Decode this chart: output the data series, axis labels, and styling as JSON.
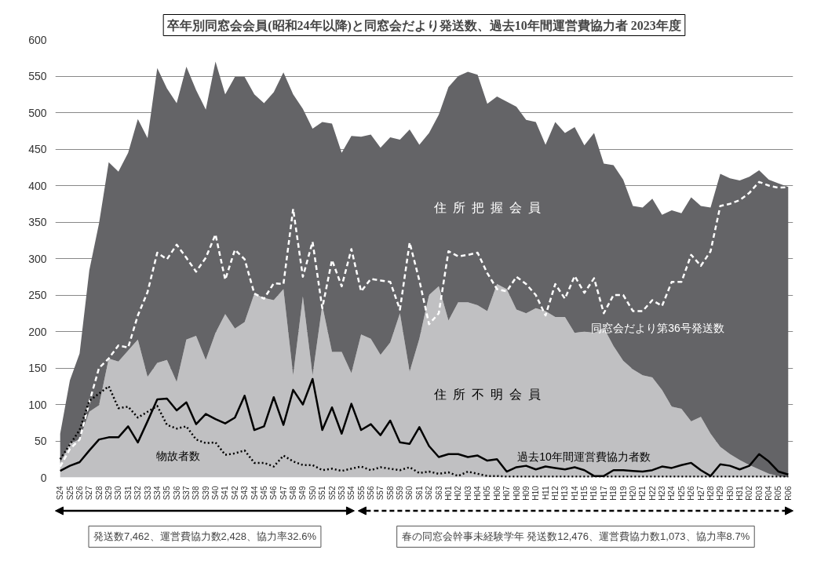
{
  "chart_data": {
    "type": "area",
    "stacked": true,
    "title": "卒年別同窓会会員(昭和24年以降)と同窓会だより発送数、過去10年間運営費協力者 2023年度",
    "categories": [
      "S24",
      "S25",
      "S26",
      "S27",
      "S28",
      "S29",
      "S30",
      "S31",
      "S32",
      "S33",
      "S34",
      "S35",
      "S36",
      "S37",
      "S38",
      "S39",
      "S40",
      "S41",
      "S42",
      "S43",
      "S44",
      "S45",
      "S46",
      "S47",
      "S48",
      "S49",
      "S50",
      "S51",
      "S52",
      "S53",
      "S54",
      "S55",
      "S56",
      "S57",
      "S58",
      "S59",
      "S60",
      "S61",
      "S62",
      "S63",
      "H01",
      "H02",
      "H03",
      "H04",
      "H05",
      "H06",
      "H07",
      "H08",
      "H09",
      "H10",
      "H11",
      "H12",
      "H13",
      "H14",
      "H15",
      "H16",
      "H17",
      "H18",
      "H19",
      "H20",
      "H21",
      "H22",
      "H23",
      "H24",
      "H25",
      "H26",
      "H27",
      "H28",
      "H29",
      "H30",
      "H31",
      "R02",
      "R03",
      "R04",
      "R05",
      "R06"
    ],
    "series": [
      {
        "name": "住所不明会員",
        "color": "#c0c0c2",
        "values": [
          20,
          47,
          52,
          90,
          99,
          163,
          159,
          174,
          189,
          138,
          157,
          161,
          131,
          189,
          194,
          161,
          198,
          224,
          204,
          213,
          252,
          246,
          243,
          258,
          140,
          248,
          140,
          236,
          172,
          172,
          143,
          196,
          190,
          168,
          185,
          225,
          145,
          190,
          250,
          262,
          215,
          240,
          240,
          236,
          228,
          265,
          258,
          230,
          225,
          232,
          228,
          220,
          220,
          198,
          200,
          198,
          205,
          180,
          160,
          148,
          140,
          137,
          120,
          97,
          94,
          77,
          83,
          60,
          42,
          32,
          24,
          17,
          11,
          5,
          2,
          0
        ]
      },
      {
        "name": "住所把握会員",
        "color": "#646467",
        "values": [
          40,
          86,
          118,
          194,
          249,
          269,
          260,
          271,
          302,
          327,
          404,
          372,
          382,
          374,
          337,
          343,
          372,
          301,
          345,
          336,
          273,
          267,
          285,
          297,
          385,
          257,
          338,
          251,
          313,
          273,
          325,
          271,
          280,
          284,
          281,
          238,
          332,
          266,
          222,
          235,
          320,
          310,
          316,
          316,
          284,
          257,
          257,
          278,
          265,
          255,
          228,
          267,
          252,
          282,
          255,
          274,
          225,
          248,
          248,
          224,
          230,
          245,
          240,
          269,
          268,
          307,
          289,
          310,
          374,
          378,
          383,
          395,
          410,
          403,
          401,
          398
        ]
      },
      {
        "name": "同窓会だより第36号発送数",
        "type": "line",
        "line_style": "dashed",
        "color": "#ffffff",
        "values": [
          15,
          39,
          52,
          103,
          150,
          163,
          181,
          178,
          222,
          254,
          308,
          299,
          319,
          301,
          282,
          301,
          333,
          271,
          312,
          299,
          252,
          245,
          266,
          265,
          368,
          275,
          323,
          232,
          298,
          262,
          313,
          255,
          272,
          270,
          268,
          230,
          322,
          270,
          210,
          225,
          310,
          303,
          305,
          308,
          280,
          258,
          255,
          275,
          265,
          250,
          222,
          265,
          245,
          276,
          253,
          273,
          225,
          250,
          250,
          228,
          228,
          243,
          235,
          268,
          268,
          305,
          290,
          310,
          372,
          375,
          380,
          390,
          405,
          400,
          397,
          398
        ]
      },
      {
        "name": "物故者数",
        "type": "line",
        "line_style": "dotted",
        "color": "#000000",
        "values": [
          25,
          45,
          65,
          105,
          115,
          125,
          95,
          97,
          82,
          90,
          98,
          72,
          67,
          70,
          52,
          47,
          48,
          31,
          33,
          37,
          20,
          20,
          15,
          30,
          22,
          17,
          17,
          10,
          12,
          9,
          12,
          15,
          10,
          14,
          12,
          10,
          14,
          6,
          8,
          5,
          7,
          2,
          8,
          5,
          2,
          2,
          1,
          1,
          1,
          1,
          1,
          1,
          1,
          1,
          1,
          1,
          1,
          1,
          1,
          1,
          1,
          1,
          1,
          1,
          1,
          1,
          1,
          1,
          1,
          1,
          1,
          1,
          1,
          1,
          1,
          1
        ]
      },
      {
        "name": "過去10年間運営費協力者数",
        "type": "line",
        "line_style": "solid",
        "color": "#000000",
        "values": [
          9,
          16,
          21,
          37,
          52,
          55,
          55,
          70,
          48,
          77,
          107,
          108,
          92,
          103,
          73,
          87,
          80,
          74,
          82,
          112,
          65,
          70,
          110,
          72,
          120,
          100,
          135,
          65,
          96,
          60,
          101,
          65,
          73,
          58,
          78,
          48,
          46,
          69,
          43,
          28,
          32,
          32,
          28,
          30,
          23,
          25,
          8,
          14,
          16,
          11,
          15,
          13,
          11,
          14,
          10,
          2,
          2,
          10,
          10,
          9,
          8,
          10,
          15,
          13,
          17,
          20,
          10,
          2,
          18,
          16,
          11,
          16,
          32,
          22,
          8,
          4
        ]
      }
    ],
    "ylim": [
      0,
      600
    ],
    "yticks": [
      0,
      50,
      100,
      150,
      200,
      250,
      300,
      350,
      400,
      450,
      500,
      550,
      600
    ],
    "grid": "y",
    "legend": false,
    "annotations": [
      "発送数7,462、運営費協力数2,428、協力率32.6%",
      "春の同窓会幹事未経験学年 発送数12,476、運営費協力数1,073、協力率8.7%"
    ]
  }
}
